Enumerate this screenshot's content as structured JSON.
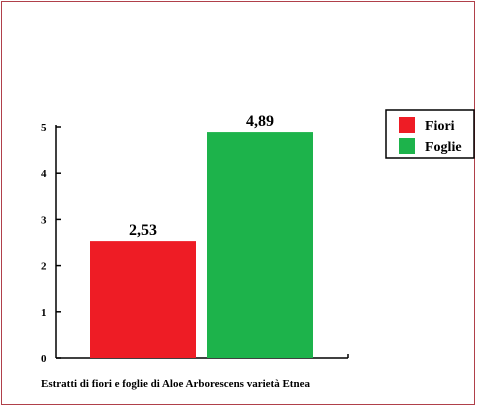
{
  "chart_data": {
    "type": "bar",
    "categories": [
      "Fiori",
      "Foglie"
    ],
    "values": [
      2.53,
      4.89
    ],
    "data_labels": [
      "2,53",
      "4,89"
    ],
    "colors": [
      "#ee1c25",
      "#1db34b"
    ],
    "xlabel": "Estratti di fiori e foglie di Aloe Arborescens varietà Etnea",
    "ylabel": "",
    "title": "",
    "ylim": [
      0,
      5
    ],
    "yticks": [
      "0",
      "1",
      "2",
      "3",
      "4",
      "5"
    ],
    "grid": false,
    "legend": {
      "placement": "top-right",
      "entries": [
        "Fiori",
        "Foglie"
      ]
    },
    "frame_color": "#b0404a"
  }
}
